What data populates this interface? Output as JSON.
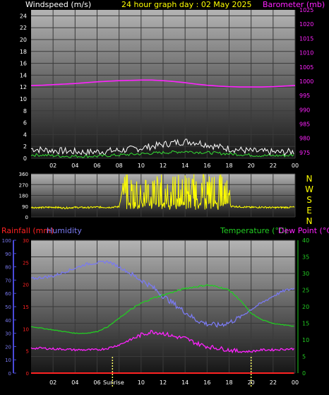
{
  "chart_data": [
    {
      "type": "line",
      "title": "24 hour graph day : 02 May 2025",
      "ylabel_left": "Windspeed (m/s)",
      "ylabel_right": "Barometer (mb)",
      "x_ticks": [
        "02",
        "04",
        "06",
        "08",
        "10",
        "12",
        "14",
        "16",
        "18",
        "20",
        "22",
        "00"
      ],
      "y_left_ticks": [
        "0",
        "2",
        "4",
        "6",
        "8",
        "10",
        "12",
        "14",
        "16",
        "18",
        "20",
        "22",
        "24"
      ],
      "y_left_range": [
        0,
        25
      ],
      "y_right_ticks": [
        "975",
        "980",
        "985",
        "990",
        "995",
        "1000",
        "1005",
        "1010",
        "1015",
        "1020",
        "1025"
      ],
      "y_right_range": [
        973,
        1025
      ],
      "grid": true,
      "series": [
        {
          "name": "Windspeed (m/s)",
          "key": "gust",
          "color": "#ffffff",
          "x": [
            0,
            1,
            2,
            3,
            4,
            5,
            6,
            7,
            8,
            9,
            10,
            11,
            12,
            13,
            14,
            15,
            16,
            17,
            18,
            19,
            20,
            21,
            22,
            23,
            24
          ],
          "values": [
            1.5,
            1.3,
            1.2,
            1.1,
            1.0,
            0.9,
            1.0,
            1.1,
            1.2,
            1.4,
            1.6,
            1.9,
            2.2,
            2.5,
            2.7,
            2.6,
            2.2,
            1.8,
            1.5,
            1.3,
            1.1,
            1.0,
            0.9,
            0.9,
            1.0
          ]
        },
        {
          "name": "Windspeed (m/s)",
          "key": "avg",
          "color": "#33dd33",
          "x": [
            0,
            1,
            2,
            3,
            4,
            5,
            6,
            7,
            8,
            9,
            10,
            11,
            12,
            13,
            14,
            15,
            16,
            17,
            18,
            19,
            20,
            21,
            22,
            23,
            24
          ],
          "values": [
            0.5,
            0.5,
            0.4,
            0.3,
            0.3,
            0.3,
            0.3,
            0.4,
            0.5,
            0.6,
            0.7,
            0.8,
            0.9,
            1.0,
            1.1,
            1.0,
            0.9,
            0.8,
            0.7,
            0.6,
            0.5,
            0.4,
            0.4,
            0.4,
            0.5
          ]
        },
        {
          "name": "Barometer (mb)",
          "key": "baro",
          "color": "#ff22ff",
          "axis": "right",
          "x": [
            0,
            1,
            2,
            3,
            4,
            5,
            6,
            7,
            8,
            9,
            10,
            11,
            12,
            13,
            14,
            15,
            16,
            17,
            18,
            19,
            20,
            21,
            22,
            23,
            24
          ],
          "values": [
            998.5,
            998.6,
            998.8,
            999.0,
            999.2,
            999.5,
            999.8,
            1000.0,
            1000.2,
            1000.3,
            1000.4,
            1000.4,
            1000.2,
            999.9,
            999.5,
            999.0,
            998.6,
            998.3,
            998.1,
            998.0,
            998.0,
            998.0,
            998.1,
            998.3,
            998.5
          ]
        }
      ]
    },
    {
      "type": "line",
      "ylabel_right": [
        "N",
        "W",
        "S",
        "E",
        "N"
      ],
      "x_ticks": [],
      "y_left_ticks": [
        "0",
        "90",
        "180",
        "270",
        "360"
      ],
      "y_left_range": [
        0,
        360
      ],
      "grid": true,
      "series": [
        {
          "name": "Wind direction",
          "key": "dir",
          "color": "#ffff00",
          "x": [
            0,
            1,
            2,
            3,
            4,
            5,
            6,
            7,
            8,
            8.5,
            9,
            9.5,
            10,
            10.5,
            11,
            11.5,
            12,
            12.5,
            13,
            13.5,
            14,
            14.5,
            15,
            15.5,
            16,
            16.5,
            17,
            17.5,
            18,
            19,
            20,
            21,
            22,
            23,
            24
          ],
          "values": [
            80,
            78,
            82,
            75,
            80,
            78,
            82,
            80,
            85,
            320,
            150,
            300,
            180,
            330,
            120,
            280,
            200,
            340,
            160,
            300,
            220,
            330,
            140,
            310,
            250,
            300,
            180,
            260,
            90,
            85,
            80,
            82,
            78,
            80,
            82
          ]
        }
      ]
    },
    {
      "type": "line",
      "ylabel_left_1": "Rainfall (mm)",
      "ylabel_left_2": "Humidity",
      "ylabel_right_1": "Temperature (°C)",
      "ylabel_right_2": "Dew Point (°C)",
      "x_ticks": [
        "02",
        "04",
        "06",
        "Sunrise",
        "10",
        "12",
        "14",
        "16",
        "18",
        "20",
        "22",
        "00"
      ],
      "sunrise_hour": 5.8,
      "sunset_hour": 20.0,
      "y_humidity_ticks": [
        "0",
        "10",
        "20",
        "30",
        "40",
        "50",
        "60",
        "70",
        "80",
        "90",
        "100"
      ],
      "y_humidity_range": [
        0,
        100
      ],
      "y_rain_ticks": [
        "0",
        "5",
        "10",
        "15",
        "20",
        "25",
        "30"
      ],
      "y_rain_range": [
        0,
        30
      ],
      "y_temp_ticks": [
        "0",
        "5",
        "10",
        "15",
        "20",
        "25",
        "30",
        "35",
        "40"
      ],
      "y_temp_range": [
        0,
        40
      ],
      "grid": true,
      "series": [
        {
          "name": "Humidity",
          "key": "hum",
          "color": "#7a7af0",
          "axis": "humidity",
          "x": [
            0,
            1,
            2,
            3,
            4,
            5,
            6,
            7,
            8,
            9,
            10,
            11,
            12,
            13,
            14,
            15,
            16,
            17,
            18,
            19,
            20,
            21,
            22,
            23,
            24
          ],
          "values": [
            71,
            72,
            73,
            76,
            79,
            82,
            83,
            84,
            80,
            75,
            70,
            65,
            58,
            52,
            46,
            40,
            37,
            36,
            38,
            42,
            48,
            53,
            58,
            62,
            64
          ]
        },
        {
          "name": "Temperature (°C)",
          "key": "temp",
          "color": "#22cc22",
          "axis": "temp",
          "x": [
            0,
            1,
            2,
            3,
            4,
            5,
            6,
            7,
            8,
            9,
            10,
            11,
            12,
            13,
            14,
            15,
            16,
            17,
            18,
            19,
            20,
            21,
            22,
            23,
            24
          ],
          "values": [
            14,
            13.5,
            13,
            12.5,
            12,
            12,
            12.5,
            14,
            16.5,
            19,
            21,
            22.5,
            23.5,
            24.5,
            25.5,
            26,
            26.5,
            26,
            25,
            22,
            18,
            16,
            15,
            14.5,
            14
          ]
        },
        {
          "name": "Dew Point (°C)",
          "key": "dew",
          "color": "#ff22ff",
          "axis": "temp",
          "x": [
            0,
            1,
            2,
            3,
            4,
            5,
            6,
            7,
            8,
            9,
            10,
            11,
            12,
            13,
            14,
            15,
            16,
            17,
            18,
            19,
            20,
            21,
            22,
            23,
            24
          ],
          "values": [
            7.5,
            7.5,
            7.3,
            7.2,
            7,
            7,
            7,
            7.5,
            8.5,
            10,
            11.5,
            12.5,
            12,
            11,
            10.5,
            9,
            8,
            7.5,
            7,
            6.5,
            6.5,
            7,
            7,
            7.2,
            7.3
          ]
        },
        {
          "name": "Rainfall (mm)",
          "key": "rain",
          "color": "#ff2222",
          "axis": "rain",
          "x": [
            0,
            24
          ],
          "values": [
            0,
            0
          ]
        }
      ]
    }
  ]
}
